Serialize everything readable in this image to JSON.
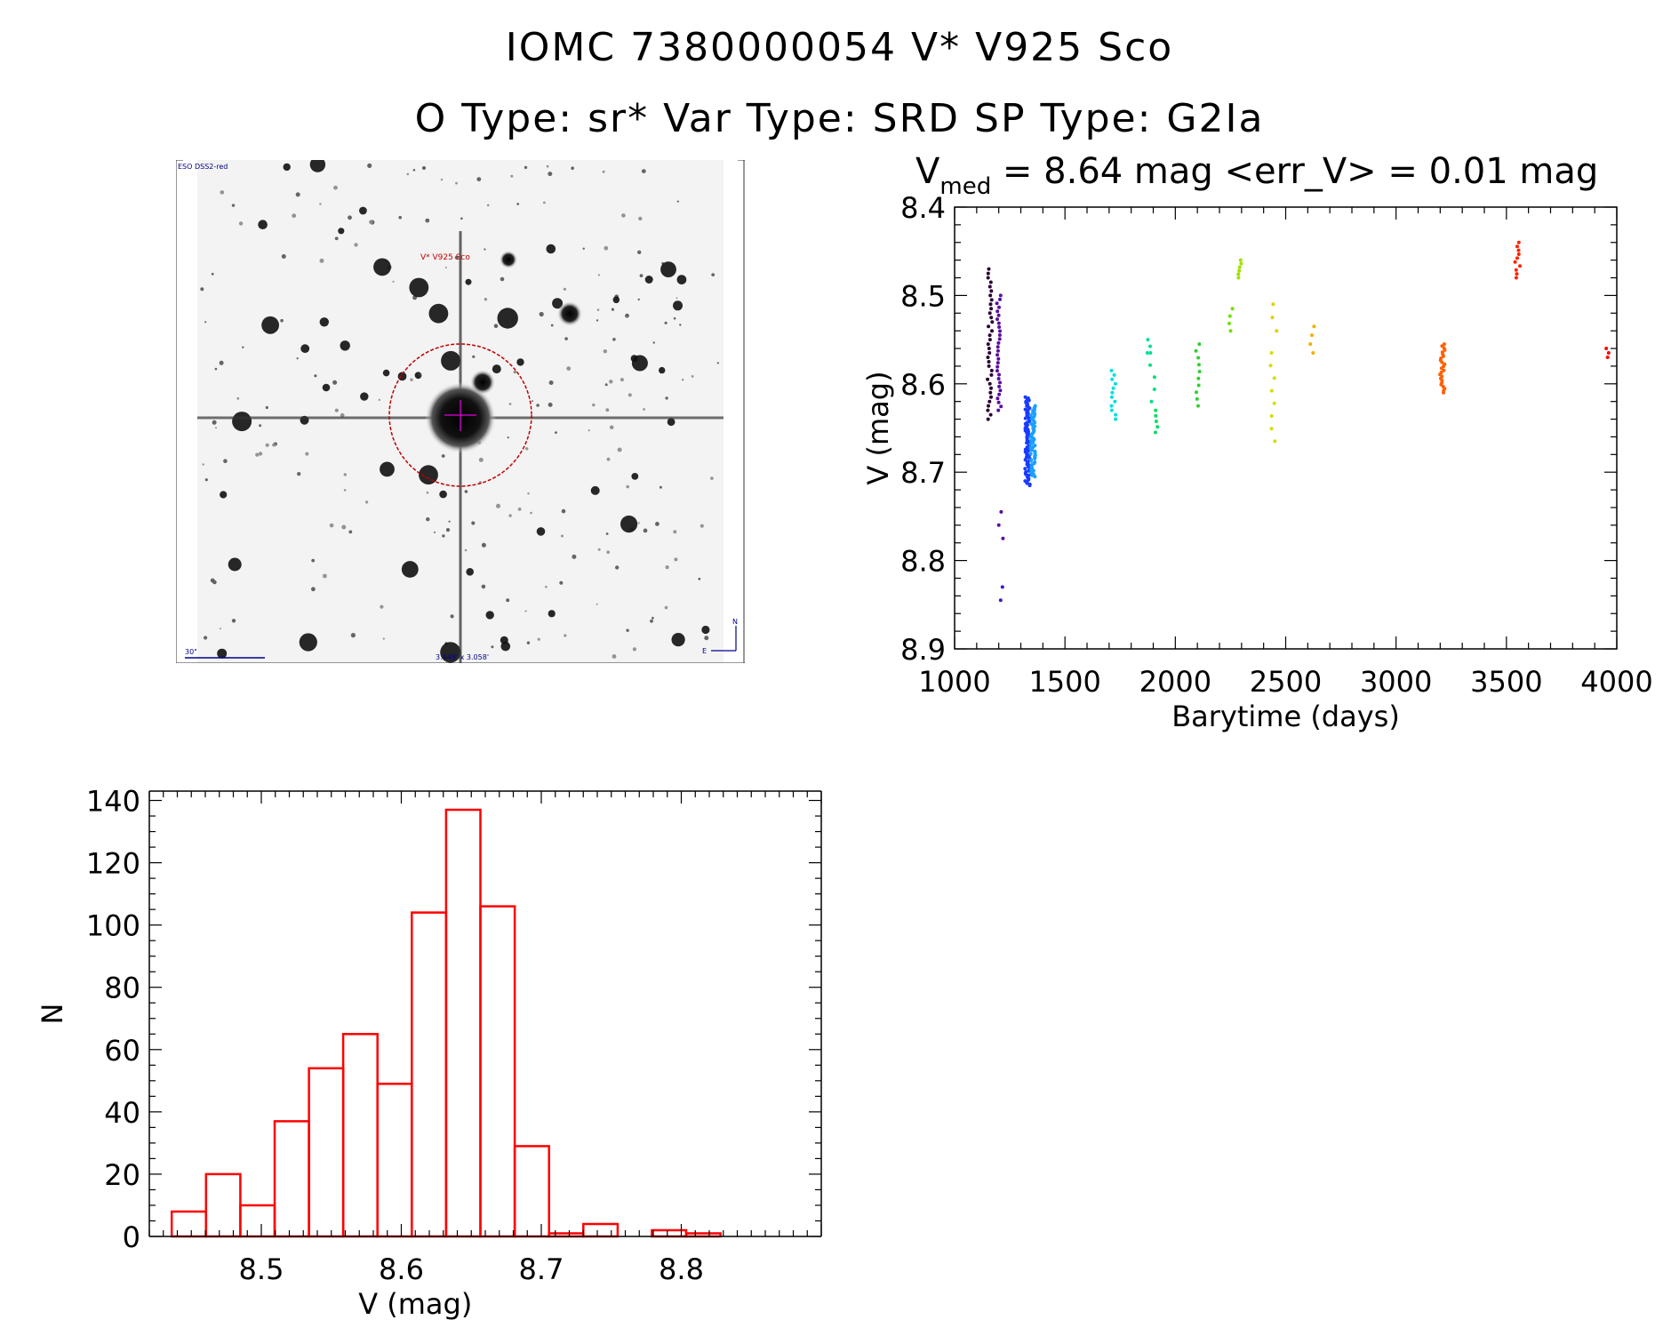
{
  "header": {
    "title": "IOMC 7380000054    V* V925 Sco",
    "subtitle": "O Type: sr*  Var Type: SRD  SP Type: G2Ia"
  },
  "finder_chart": {
    "survey_label": "ESO DSS2-red",
    "object_label": "V* V925 Sco",
    "scale_label": "30\"",
    "fov_label": "3.449' x 3.058'",
    "north_label": "N",
    "east_label": "E"
  },
  "light_curve": {
    "title_prefix": "V",
    "title_sub": "med",
    "title_rest": " = 8.64 mag <err_V> = 0.01 mag"
  },
  "chart_data": [
    {
      "type": "scatter",
      "title": "V_med = 8.64 mag <err_V> = 0.01 mag",
      "xlabel": "Barytime (days)",
      "ylabel": "V (mag)",
      "xlim": [
        1000,
        4000
      ],
      "ylim": [
        8.9,
        8.4
      ],
      "y_reversed": true,
      "x_ticks": [
        "1000",
        "1500",
        "2000",
        "2500",
        "3000",
        "3500",
        "4000"
      ],
      "y_ticks": [
        "8.4",
        "8.5",
        "8.6",
        "8.7",
        "8.8",
        "8.9"
      ],
      "grid": false,
      "clusters": [
        {
          "x": 1160,
          "y_min": 8.47,
          "y_max": 8.64,
          "color": "#2a0033",
          "n": 35
        },
        {
          "x": 1200,
          "y_min": 8.5,
          "y_max": 8.63,
          "color": "#5a0fa0",
          "n": 30
        },
        {
          "x": 1210,
          "y_min": 8.745,
          "y_max": 8.775,
          "color": "#5a0fa0",
          "n": 3
        },
        {
          "x": 1210,
          "y_min": 8.83,
          "y_max": 8.845,
          "color": "#3a1ad0",
          "n": 2
        },
        {
          "x": 1330,
          "y_min": 8.615,
          "y_max": 8.715,
          "color": "#1a3aff",
          "n": 80
        },
        {
          "x": 1355,
          "y_min": 8.625,
          "y_max": 8.705,
          "color": "#1aa0ff",
          "n": 60
        },
        {
          "x": 1720,
          "y_min": 8.585,
          "y_max": 8.64,
          "color": "#00e0e0",
          "n": 12
        },
        {
          "x": 1875,
          "y_min": 8.55,
          "y_max": 8.565,
          "color": "#00e0a0",
          "n": 3
        },
        {
          "x": 1895,
          "y_min": 8.565,
          "y_max": 8.62,
          "color": "#00e080",
          "n": 5
        },
        {
          "x": 1920,
          "y_min": 8.63,
          "y_max": 8.655,
          "color": "#00e060",
          "n": 5
        },
        {
          "x": 2100,
          "y_min": 8.555,
          "y_max": 8.625,
          "color": "#30d030",
          "n": 10
        },
        {
          "x": 2250,
          "y_min": 8.515,
          "y_max": 8.54,
          "color": "#70e000",
          "n": 4
        },
        {
          "x": 2290,
          "y_min": 8.46,
          "y_max": 8.48,
          "color": "#a0e000",
          "n": 6
        },
        {
          "x": 2440,
          "y_min": 8.565,
          "y_max": 8.665,
          "color": "#d0e000",
          "n": 8
        },
        {
          "x": 2450,
          "y_min": 8.51,
          "y_max": 8.54,
          "color": "#e0d000",
          "n": 3
        },
        {
          "x": 2620,
          "y_min": 8.535,
          "y_max": 8.565,
          "color": "#f0b000",
          "n": 4
        },
        {
          "x": 3210,
          "y_min": 8.555,
          "y_max": 8.61,
          "color": "#ff6000",
          "n": 25
        },
        {
          "x": 3550,
          "y_min": 8.44,
          "y_max": 8.48,
          "color": "#ff2000",
          "n": 10
        },
        {
          "x": 3960,
          "y_min": 8.56,
          "y_max": 8.57,
          "color": "#ff0000",
          "n": 3
        }
      ]
    },
    {
      "type": "bar",
      "subtype": "histogram",
      "xlabel": "V (mag)",
      "ylabel": "N",
      "xlim": [
        8.42,
        8.9
      ],
      "ylim": [
        0,
        140
      ],
      "x_ticks": [
        "8.5",
        "8.6",
        "8.7",
        "8.8"
      ],
      "y_ticks": [
        "0",
        "20",
        "40",
        "60",
        "80",
        "100",
        "120",
        "140"
      ],
      "bin_width": 0.0245,
      "bin_edges_start": 8.436,
      "values": [
        8,
        20,
        10,
        37,
        54,
        65,
        49,
        104,
        137,
        106,
        29,
        1,
        4,
        0,
        2,
        1
      ],
      "bar_color": "#ff0000"
    }
  ]
}
